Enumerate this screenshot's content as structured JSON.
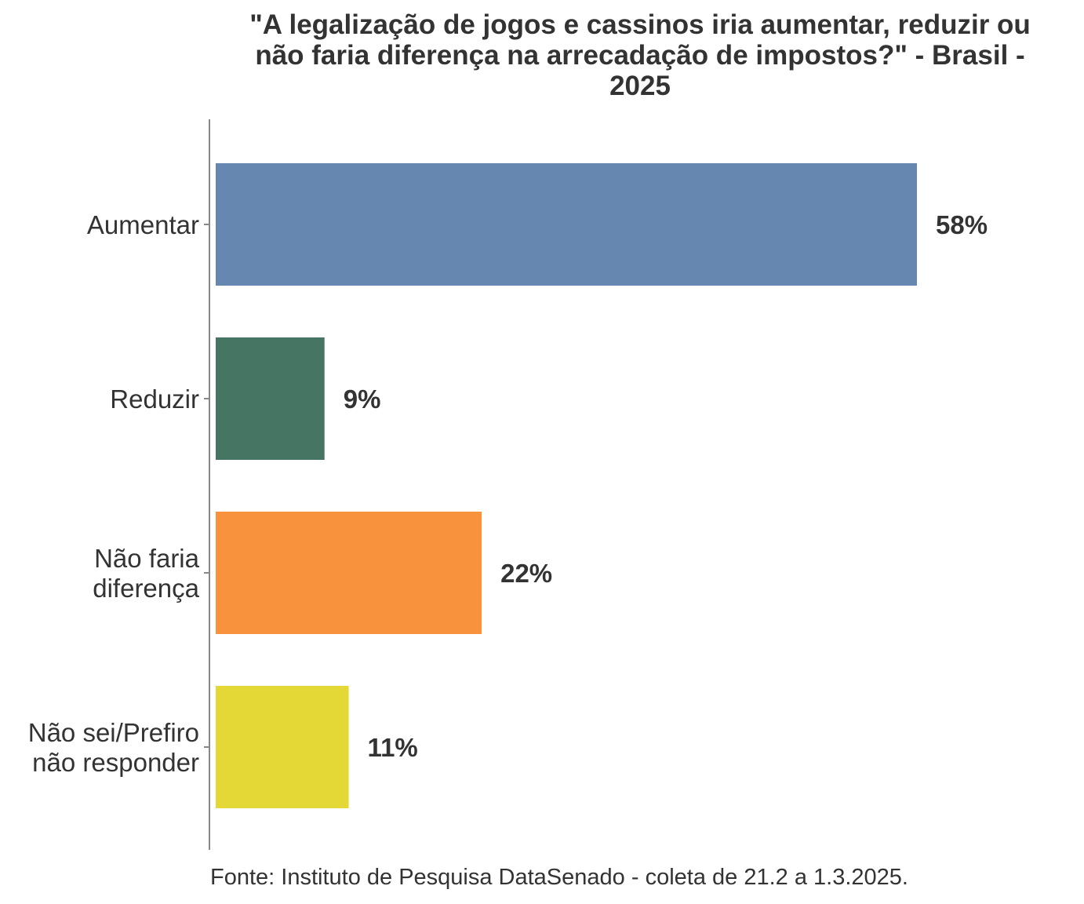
{
  "chart_data": {
    "type": "bar",
    "orientation": "horizontal",
    "title": "\"A legalização de jogos e cassinos iria aumentar, reduzir ou não faria diferença na arrecadação de impostos?\" - Brasil - 2025",
    "title_lines": [
      "\"A legalização de jogos e cassinos iria aumentar, reduzir ou",
      "não faria diferença na arrecadação de impostos?\" - Brasil -",
      "2025"
    ],
    "categories": [
      [
        "Aumentar"
      ],
      [
        "Reduzir"
      ],
      [
        "Não faria",
        "diferença"
      ],
      [
        "Não sei/Prefiro",
        "não responder"
      ]
    ],
    "values": [
      58,
      9,
      22,
      11
    ],
    "value_labels": [
      "58%",
      "9%",
      "22%",
      "11%"
    ],
    "colors": [
      "#6688b0",
      "#467563",
      "#f9923d",
      "#e3d835"
    ],
    "xlim": [
      0,
      65
    ],
    "grid": false,
    "legend": "none",
    "xlabel": "",
    "ylabel": ""
  },
  "caption": "Fonte: Instituto de Pesquisa DataSenado - coleta de 21.2 a 1.3.2025."
}
